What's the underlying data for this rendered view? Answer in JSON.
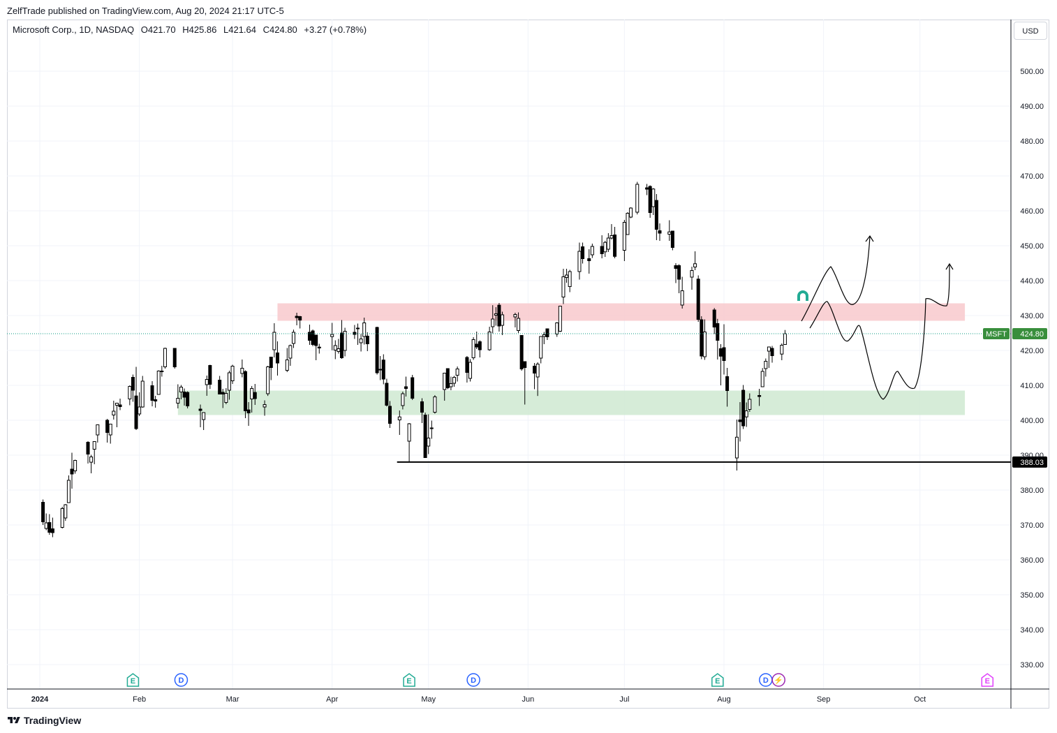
{
  "header": {
    "published": "ZelfTrade published on TradingView.com, Aug 20, 2024 21:17 UTC-5",
    "symbol_desc": "Microsoft Corp., 1D, NASDAQ",
    "open": "O421.70",
    "high": "H425.86",
    "low": "L421.64",
    "close": "C424.80",
    "change": "+3.27 (+0.78%)",
    "currency_button": "USD"
  },
  "footer": {
    "brand": "TradingView"
  },
  "chart_data": {
    "type": "candlestick",
    "symbol": "MSFT",
    "last_price": 424.8,
    "last_price_label": "424.80",
    "symbol_tag": "MSFT",
    "support_line": {
      "value": 388.03,
      "label": "388.03",
      "start_date": "2024-04-26"
    },
    "ylim": [
      325,
      510
    ],
    "y_ticks": [
      "330.00",
      "340.00",
      "350.00",
      "360.00",
      "370.00",
      "380.00",
      "390.00",
      "400.00",
      "410.00",
      "420.00",
      "430.00",
      "440.00",
      "450.00",
      "460.00",
      "470.00",
      "480.00",
      "490.00",
      "500.00"
    ],
    "x_tick_labels": [
      "2024",
      "Feb",
      "Mar",
      "Apr",
      "May",
      "Jun",
      "Jul",
      "Aug",
      "Sep",
      "Oct"
    ],
    "zones": [
      {
        "name": "resistance",
        "from": 428.5,
        "to": 433.5,
        "start": "2024-03-15",
        "end": "2024-10-15",
        "color": "#f8c9cc"
      },
      {
        "name": "support",
        "from": 401.5,
        "to": 408.5,
        "start": "2024-02-13",
        "end": "2024-10-15",
        "color": "#cfe9d1"
      }
    ],
    "event_markers": [
      {
        "type": "E",
        "date": "2024-01-30",
        "color": "#22ab94"
      },
      {
        "type": "D",
        "date": "2024-02-14",
        "color": "#2962ff"
      },
      {
        "type": "E",
        "date": "2024-04-25",
        "color": "#22ab94"
      },
      {
        "type": "D",
        "date": "2024-05-15",
        "color": "#2962ff"
      },
      {
        "type": "E",
        "date": "2024-07-30",
        "color": "#22ab94"
      },
      {
        "type": "D",
        "date": "2024-08-14",
        "color": "#2962ff"
      },
      {
        "type": "⚡",
        "date": "2024-08-18",
        "color": "#9c27b0"
      },
      {
        "type": "E",
        "date": "2024-10-22",
        "color": "#e040fb"
      }
    ],
    "candles": [
      [
        "2024-01-02",
        376.5,
        377.3,
        370.0,
        370.9
      ],
      [
        "2024-01-03",
        369.0,
        373.3,
        368.5,
        370.6
      ],
      [
        "2024-01-04",
        370.7,
        373.1,
        367.2,
        367.9
      ],
      [
        "2024-01-05",
        368.9,
        372.1,
        366.5,
        367.8
      ],
      [
        "2024-01-08",
        369.3,
        375.2,
        369.0,
        374.7
      ],
      [
        "2024-01-09",
        372.0,
        375.99,
        371.2,
        375.8
      ],
      [
        "2024-01-10",
        376.4,
        384.2,
        376.3,
        382.8
      ],
      [
        "2024-01-11",
        386.0,
        390.7,
        380.4,
        384.6
      ],
      [
        "2024-01-12",
        385.5,
        388.7,
        384.7,
        388.5
      ],
      [
        "2024-01-16",
        393.7,
        394.0,
        387.6,
        390.3
      ],
      [
        "2024-01-17",
        387.98,
        390.1,
        384.8,
        389.5
      ],
      [
        "2024-01-18",
        391.7,
        393.4,
        387.4,
        393.9
      ],
      [
        "2024-01-19",
        395.8,
        398.7,
        393.6,
        398.7
      ],
      [
        "2024-01-22",
        400.0,
        400.4,
        393.6,
        396.5
      ],
      [
        "2024-01-23",
        395.8,
        399.0,
        393.3,
        398.9
      ],
      [
        "2024-01-24",
        401.5,
        405.6,
        400.2,
        402.6
      ],
      [
        "2024-01-25",
        404.3,
        404.7,
        398.0,
        404.9
      ],
      [
        "2024-01-26",
        404.4,
        406.2,
        402.9,
        403.9
      ],
      [
        "2024-01-29",
        406.1,
        409.98,
        404.3,
        409.7
      ],
      [
        "2024-01-30",
        412.3,
        413.1,
        405.3,
        408.6
      ],
      [
        "2024-01-31",
        406.96,
        415.3,
        397.2,
        397.6
      ],
      [
        "2024-02-01",
        401.8,
        408.0,
        401.2,
        403.8
      ],
      [
        "2024-02-02",
        403.8,
        412.7,
        403.6,
        411.2
      ],
      [
        "2024-02-05",
        409.9,
        411.2,
        403.99,
        405.7
      ],
      [
        "2024-02-06",
        405.9,
        407.0,
        403.6,
        405.5
      ],
      [
        "2024-02-07",
        407.4,
        414.3,
        407.4,
        414.1
      ],
      [
        "2024-02-08",
        414.1,
        415.6,
        412.5,
        414.1
      ],
      [
        "2024-02-09",
        415.3,
        420.8,
        414.8,
        420.6
      ],
      [
        "2024-02-12",
        420.6,
        420.7,
        414.8,
        415.3
      ],
      [
        "2024-02-13",
        404.9,
        410.3,
        403.4,
        406.3
      ],
      [
        "2024-02-14",
        408.1,
        410.1,
        406.0,
        409.5
      ],
      [
        "2024-02-15",
        408.1,
        409.1,
        404.2,
        406.6
      ],
      [
        "2024-02-16",
        407.96,
        408.3,
        403.4,
        404.1
      ],
      [
        "2024-02-20",
        403.2,
        404.5,
        398.0,
        402.8
      ],
      [
        "2024-02-21",
        400.2,
        402.3,
        397.2,
        402.2
      ],
      [
        "2024-02-22",
        410.2,
        412.8,
        407.0,
        411.7
      ],
      [
        "2024-02-23",
        415.7,
        415.9,
        408.97,
        410.3
      ],
      [
        "2024-02-26",
        411.5,
        412.7,
        407.9,
        407.5
      ],
      [
        "2024-02-27",
        407.99,
        409.0,
        403.5,
        407.5
      ],
      [
        "2024-02-28",
        405.1,
        409.2,
        404.6,
        407.7
      ],
      [
        "2024-02-29",
        408.6,
        414.2,
        405.9,
        413.6
      ],
      [
        "2024-03-01",
        411.3,
        415.9,
        410.4,
        415.5
      ],
      [
        "2024-03-04",
        413.4,
        417.4,
        412.3,
        414.9
      ],
      [
        "2024-03-05",
        413.96,
        414.3,
        400.6,
        402.7
      ],
      [
        "2024-03-06",
        402.97,
        405.2,
        398.4,
        402.1
      ],
      [
        "2024-03-07",
        406.1,
        409.8,
        402.2,
        409.1
      ],
      [
        "2024-03-08",
        407.96,
        410.4,
        404.4,
        406.2
      ],
      [
        "2024-03-11",
        403.8,
        405.7,
        401.3,
        404.5
      ],
      [
        "2024-03-12",
        407.6,
        415.6,
        406.97,
        415.3
      ],
      [
        "2024-03-13",
        418.1,
        418.2,
        411.5,
        415.1
      ],
      [
        "2024-03-14",
        420.2,
        427.8,
        417.99,
        425.2
      ],
      [
        "2024-03-15",
        419.3,
        422.6,
        412.8,
        416.4
      ],
      [
        "2024-03-18",
        414.3,
        420.7,
        413.8,
        417.3
      ],
      [
        "2024-03-19",
        417.8,
        421.7,
        415.6,
        421.4
      ],
      [
        "2024-03-20",
        422.0,
        425.96,
        420.7,
        425.2
      ],
      [
        "2024-03-21",
        429.8,
        430.8,
        427.2,
        429.4
      ],
      [
        "2024-03-22",
        429.7,
        429.9,
        426.3,
        428.7
      ],
      [
        "2024-03-25",
        425.2,
        427.4,
        421.6,
        422.9
      ],
      [
        "2024-03-26",
        425.6,
        425.99,
        421.2,
        421.7
      ],
      [
        "2024-03-27",
        424.4,
        424.4,
        417.2,
        421.4
      ],
      [
        "2024-03-28",
        420.96,
        421.9,
        419.1,
        420.7
      ],
      [
        "2024-04-01",
        423.95,
        427.9,
        420.05,
        424.6
      ],
      [
        "2024-04-02",
        420.1,
        422.9,
        417.5,
        421.4
      ],
      [
        "2024-04-03",
        419.7,
        423.3,
        419.1,
        420.5
      ],
      [
        "2024-04-04",
        424.99,
        428.7,
        417.6,
        417.9
      ],
      [
        "2024-04-05",
        420.0,
        426.5,
        418.3,
        425.5
      ],
      [
        "2024-04-08",
        425.2,
        427.3,
        423.3,
        424.6
      ],
      [
        "2024-04-09",
        426.4,
        427.7,
        421.6,
        426.3
      ],
      [
        "2024-04-10",
        422.2,
        424.7,
        419.7,
        423.3
      ],
      [
        "2024-04-11",
        424.0,
        429.4,
        421.7,
        427.9
      ],
      [
        "2024-04-12",
        424.1,
        425.2,
        419.8,
        421.9
      ],
      [
        "2024-04-15",
        426.6,
        426.8,
        413.1,
        413.6
      ],
      [
        "2024-04-16",
        414.6,
        418.4,
        411.5,
        414.6
      ],
      [
        "2024-04-17",
        417.25,
        418.9,
        410.3,
        411.8
      ],
      [
        "2024-04-18",
        410.6,
        411.9,
        403.95,
        404.3
      ],
      [
        "2024-04-19",
        404.0,
        405.5,
        397.8,
        399.1
      ],
      [
        "2024-04-22",
        400.1,
        402.8,
        395.8,
        400.96
      ],
      [
        "2024-04-23",
        404.2,
        408.2,
        403.1,
        407.6
      ],
      [
        "2024-04-24",
        409.6,
        412.5,
        406.8,
        409.1
      ],
      [
        "2024-04-25",
        394.0,
        399.2,
        388.03,
        399.0
      ],
      [
        "2024-04-26",
        412.2,
        413.0,
        405.8,
        406.3
      ],
      [
        "2024-04-29",
        405.3,
        406.3,
        399.2,
        402.3
      ],
      [
        "2024-04-30",
        401.5,
        402.2,
        389.2,
        389.3
      ],
      [
        "2024-05-01",
        392.6,
        401.7,
        390.3,
        394.9
      ],
      [
        "2024-05-02",
        397.7,
        399.9,
        394.7,
        397.8
      ],
      [
        "2024-05-03",
        402.3,
        407.2,
        401.9,
        406.7
      ],
      [
        "2024-05-06",
        408.8,
        413.6,
        405.6,
        413.5
      ],
      [
        "2024-05-07",
        414.8,
        414.8,
        408.9,
        409.3
      ],
      [
        "2024-05-08",
        409.6,
        412.5,
        408.6,
        410.5
      ],
      [
        "2024-05-09",
        410.6,
        412.7,
        409.6,
        412.3
      ],
      [
        "2024-05-10",
        412.9,
        415.4,
        411.1,
        414.7
      ],
      [
        "2024-05-13",
        418.0,
        418.4,
        410.8,
        413.7
      ],
      [
        "2024-05-14",
        412.0,
        417.5,
        411.1,
        416.6
      ],
      [
        "2024-05-15",
        417.9,
        423.8,
        417.3,
        423.1
      ],
      [
        "2024-05-16",
        421.8,
        425.4,
        420.4,
        420.99
      ],
      [
        "2024-05-17",
        422.5,
        422.9,
        418.0,
        420.2
      ],
      [
        "2024-05-20",
        420.2,
        426.8,
        419.9,
        425.3
      ],
      [
        "2024-05-21",
        426.8,
        432.97,
        424.9,
        429.0
      ],
      [
        "2024-05-22",
        430.1,
        432.4,
        427.1,
        430.5
      ],
      [
        "2024-05-23",
        432.97,
        433.6,
        425.4,
        427.0
      ],
      [
        "2024-05-24",
        427.2,
        431.1,
        424.4,
        430.2
      ],
      [
        "2024-05-28",
        429.6,
        430.8,
        426.6,
        430.3
      ],
      [
        "2024-05-29",
        425.7,
        430.9,
        425.0,
        429.2
      ],
      [
        "2024-05-30",
        424.3,
        424.3,
        414.2,
        414.7
      ],
      [
        "2024-05-31",
        416.8,
        416.8,
        404.5,
        415.1
      ],
      [
        "2024-06-03",
        415.5,
        416.4,
        408.9,
        413.5
      ],
      [
        "2024-06-04",
        412.4,
        416.6,
        406.96,
        416.1
      ],
      [
        "2024-06-05",
        417.8,
        424.1,
        416.3,
        424.0
      ],
      [
        "2024-06-06",
        424.0,
        425.3,
        421.8,
        424.5
      ],
      [
        "2024-06-07",
        426.2,
        426.3,
        423.0,
        423.9
      ],
      [
        "2024-06-10",
        424.7,
        428.1,
        423.9,
        427.9
      ],
      [
        "2024-06-11",
        425.5,
        432.8,
        425.3,
        432.7
      ],
      [
        "2024-06-12",
        435.3,
        443.4,
        433.3,
        441.1
      ],
      [
        "2024-06-13",
        440.9,
        443.4,
        439.4,
        441.6
      ],
      [
        "2024-06-14",
        438.3,
        443.1,
        436.7,
        442.6
      ],
      [
        "2024-06-17",
        442.6,
        450.9,
        440.3,
        448.4
      ],
      [
        "2024-06-18",
        449.7,
        450.9,
        444.9,
        446.3
      ],
      [
        "2024-06-20",
        446.3,
        449.0,
        442.0,
        445.7
      ],
      [
        "2024-06-21",
        447.4,
        450.6,
        446.5,
        449.8
      ],
      [
        "2024-06-24",
        449.8,
        453.0,
        446.4,
        447.7
      ],
      [
        "2024-06-25",
        448.25,
        451.4,
        446.8,
        450.95
      ],
      [
        "2024-06-26",
        449.0,
        453.6,
        448.2,
        452.2
      ],
      [
        "2024-06-27",
        452.2,
        456.2,
        451.8,
        452.9
      ],
      [
        "2024-06-28",
        453.1,
        455.4,
        446.4,
        446.95
      ],
      [
        "2024-07-01",
        448.7,
        457.4,
        445.6,
        456.7
      ],
      [
        "2024-07-02",
        453.2,
        459.6,
        453.1,
        459.3
      ],
      [
        "2024-07-03",
        458.2,
        461.0,
        457.9,
        460.8
      ],
      [
        "2024-07-05",
        459.6,
        468.3,
        458.97,
        467.6
      ],
      [
        "2024-07-08",
        466.6,
        467.7,
        464.5,
        466.2
      ],
      [
        "2024-07-09",
        467.0,
        467.3,
        458.0,
        459.5
      ],
      [
        "2024-07-10",
        461.2,
        466.5,
        458.8,
        466.25
      ],
      [
        "2024-07-11",
        462.98,
        464.8,
        451.6,
        454.7
      ],
      [
        "2024-07-12",
        454.3,
        456.4,
        451.4,
        453.6
      ],
      [
        "2024-07-15",
        453.3,
        457.3,
        451.4,
        453.96
      ],
      [
        "2024-07-16",
        454.2,
        454.3,
        448.7,
        449.5
      ],
      [
        "2024-07-17",
        444.3,
        445.0,
        439.3,
        443.5
      ],
      [
        "2024-07-18",
        444.3,
        444.7,
        436.4,
        440.4
      ],
      [
        "2024-07-19",
        433.0,
        441.1,
        432.0,
        437.1
      ],
      [
        "2024-07-22",
        441.0,
        444.0,
        437.4,
        442.9
      ],
      [
        "2024-07-23",
        443.9,
        448.4,
        443.0,
        444.85
      ],
      [
        "2024-07-24",
        440.45,
        441.5,
        428.2,
        428.9
      ],
      [
        "2024-07-25",
        428.8,
        429.8,
        417.5,
        418.4
      ],
      [
        "2024-07-26",
        418.2,
        428.9,
        417.3,
        425.3
      ],
      [
        "2024-07-29",
        431.6,
        432.15,
        424.7,
        426.7
      ],
      [
        "2024-07-30",
        427.7,
        429.05,
        417.4,
        422.9
      ],
      [
        "2024-07-31",
        420.5,
        421.8,
        410.0,
        418.35
      ],
      [
        "2024-08-01",
        420.8,
        427.5,
        413.1,
        417.1
      ],
      [
        "2024-08-02",
        412.5,
        415.0,
        403.9,
        408.5
      ],
      [
        "2024-08-05",
        389.2,
        400.2,
        385.6,
        395.15
      ],
      [
        "2024-08-06",
        400.1,
        405.2,
        393.9,
        399.6
      ],
      [
        "2024-08-07",
        408.6,
        410.1,
        397.5,
        398.4
      ],
      [
        "2024-08-08",
        400.96,
        405.1,
        398.1,
        402.7
      ],
      [
        "2024-08-09",
        403.1,
        407.7,
        402.4,
        406.0
      ],
      [
        "2024-08-12",
        407.1,
        409.0,
        404.1,
        406.8
      ],
      [
        "2024-08-13",
        409.6,
        414.95,
        409.6,
        414.0
      ],
      [
        "2024-08-14",
        414.8,
        417.7,
        412.5,
        416.9
      ],
      [
        "2024-08-15",
        419.8,
        421.1,
        415.0,
        421.0
      ],
      [
        "2024-08-16",
        420.6,
        421.3,
        416.5,
        418.5
      ],
      [
        "2024-08-19",
        418.96,
        422.0,
        417.2,
        421.5
      ],
      [
        "2024-08-20",
        421.7,
        425.86,
        421.64,
        424.8
      ]
    ]
  }
}
